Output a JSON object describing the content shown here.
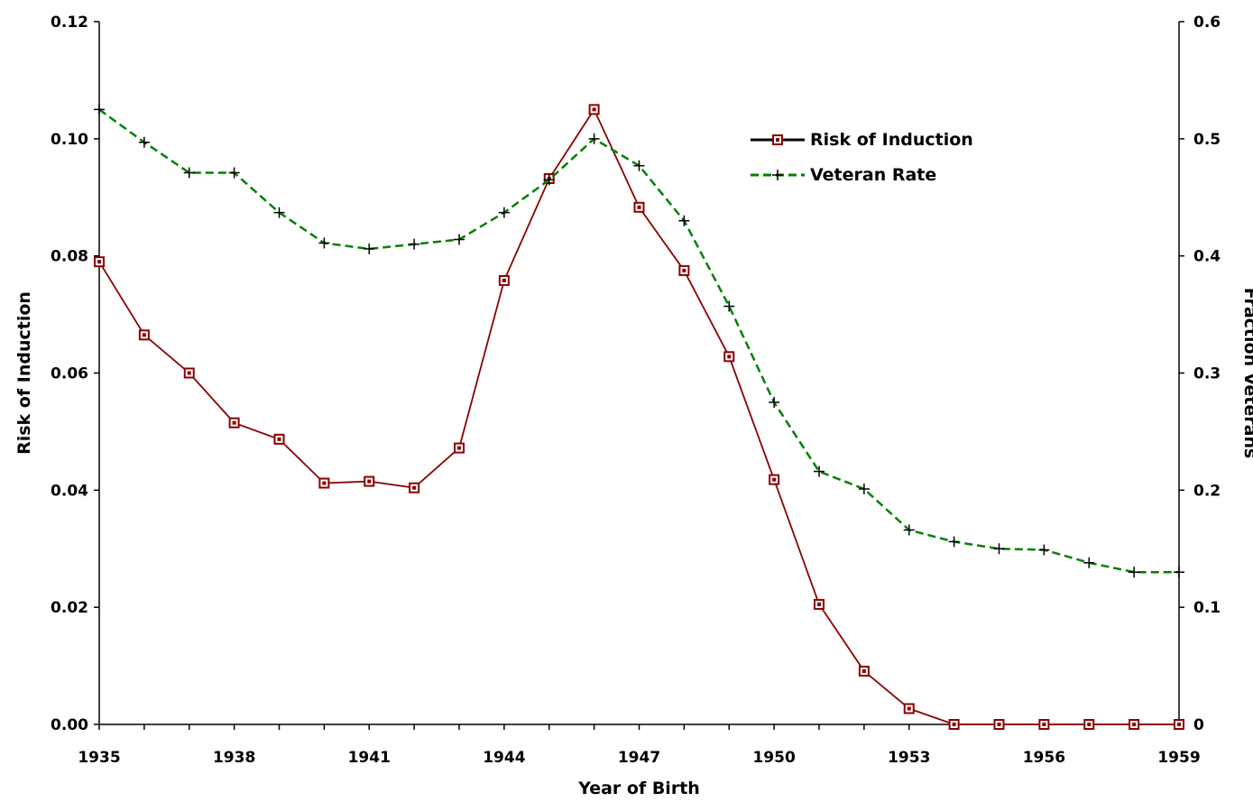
{
  "chart_data": {
    "type": "line",
    "xlabel": "Year of Birth",
    "ylabel": "Risk of Induction",
    "y2label": "Fraction Veterans",
    "x": [
      1935,
      1936,
      1937,
      1938,
      1939,
      1940,
      1941,
      1942,
      1943,
      1944,
      1945,
      1946,
      1947,
      1948,
      1949,
      1950,
      1951,
      1952,
      1953,
      1954,
      1955,
      1956,
      1957,
      1958,
      1959
    ],
    "x_tick_labels": [
      "1935",
      "1938",
      "1941",
      "1944",
      "1947",
      "1950",
      "1953",
      "1956",
      "1959"
    ],
    "x_ticks": [
      1935,
      1938,
      1941,
      1944,
      1947,
      1950,
      1953,
      1956,
      1959
    ],
    "xlim": [
      1935,
      1959
    ],
    "ylim": [
      0,
      0.12
    ],
    "y_ticks": [
      0,
      0.02,
      0.04,
      0.06,
      0.08,
      0.1,
      0.12
    ],
    "y_tick_labels": [
      "0.00",
      "0.02",
      "0.04",
      "0.06",
      "0.08",
      "0.10",
      "0.12"
    ],
    "y2lim": [
      0,
      0.6
    ],
    "y2_ticks": [
      0,
      0.1,
      0.2,
      0.3,
      0.4,
      0.5,
      0.6
    ],
    "y2_tick_labels": [
      "0",
      "0.1",
      "0.2",
      "0.3",
      "0.4",
      "0.5",
      "0.6"
    ],
    "legend_position": "top-right",
    "series": [
      {
        "name": "Risk of Induction",
        "axis": "left",
        "color": "#8b0000",
        "marker": "square",
        "values": [
          0.079,
          0.0665,
          0.06,
          0.0515,
          0.0487,
          0.0412,
          0.0415,
          0.0404,
          0.0472,
          0.0758,
          0.0932,
          0.105,
          0.0883,
          0.0775,
          0.0628,
          0.0418,
          0.0205,
          0.0091,
          0.0027,
          0.0,
          0.0,
          0.0,
          0.0,
          0.0,
          0.0
        ]
      },
      {
        "name": "Veteran Rate",
        "axis": "right",
        "color": "#008000",
        "marker": "plus",
        "values": [
          0.525,
          0.497,
          0.471,
          0.471,
          0.437,
          0.411,
          0.406,
          0.41,
          0.414,
          0.437,
          0.465,
          0.5,
          0.477,
          0.43,
          0.357,
          0.275,
          0.216,
          0.201,
          0.166,
          0.156,
          0.15,
          0.149,
          0.138,
          0.13,
          0.13
        ]
      }
    ]
  }
}
